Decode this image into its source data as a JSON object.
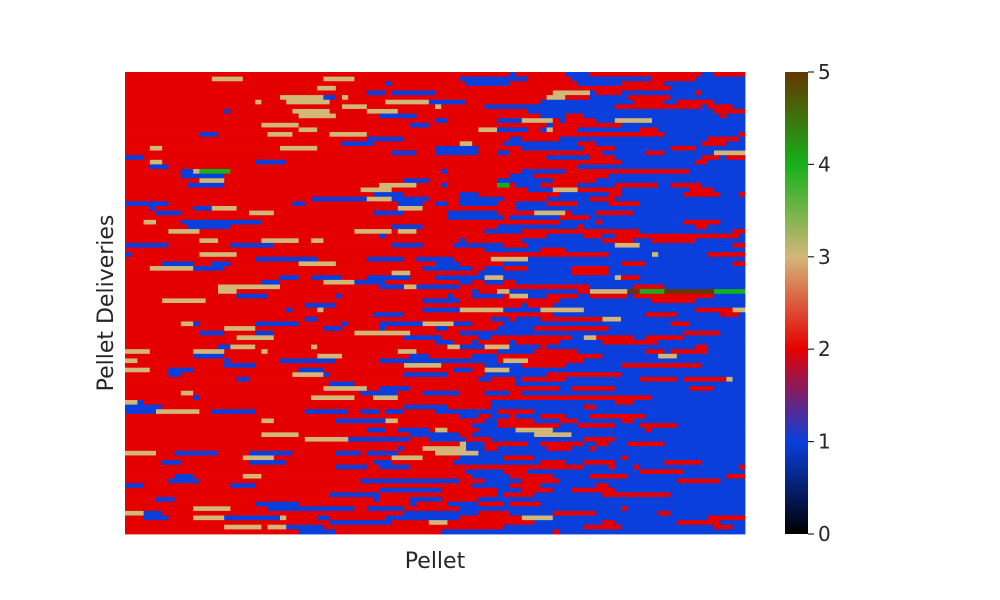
{
  "chart_data": {
    "type": "heatmap",
    "title": "",
    "xlabel": "Pellet",
    "ylabel": "Pellet Deliveries",
    "n_rows": 100,
    "n_cols": 100,
    "value_range": [
      0,
      5
    ],
    "colorbar": {
      "ticks": [
        0,
        1,
        2,
        3,
        4,
        5
      ],
      "tick_labels": [
        "0",
        "1",
        "2",
        "3",
        "4",
        "5"
      ],
      "stops": [
        {
          "value": 0,
          "color": "#000000"
        },
        {
          "value": 1,
          "color": "#0a3fdc"
        },
        {
          "value": 2,
          "color": "#e50000"
        },
        {
          "value": 3,
          "color": "#d2b778"
        },
        {
          "value": 4,
          "color": "#15b01a"
        },
        {
          "value": 5,
          "color": "#653700"
        }
      ]
    },
    "category_colors": {
      "1": "#0a3fdc",
      "2": "#e50000",
      "3": "#d2b778",
      "4": "#15b01a",
      "5": "#653700"
    },
    "notes_dominant": "values are mostly 2 (red) on the left, increasingly 1 (blue) to the right, sparse 3 (tan), rare 4 (green) and 5 (brown)",
    "special_runs": [
      {
        "row": 21,
        "col_start": 12,
        "col_end": 17,
        "value": 4
      },
      {
        "row": 24,
        "col_start": 60,
        "col_end": 62,
        "value": 4
      },
      {
        "row": 47,
        "col_start": 77,
        "col_end": 81,
        "value": 3
      },
      {
        "row": 47,
        "col_start": 81,
        "col_end": 83,
        "value": 5
      },
      {
        "row": 47,
        "col_start": 83,
        "col_end": 87,
        "value": 4
      },
      {
        "row": 47,
        "col_start": 87,
        "col_end": 95,
        "value": 5
      },
      {
        "row": 47,
        "col_start": 95,
        "col_end": 100,
        "value": 4
      }
    ]
  }
}
